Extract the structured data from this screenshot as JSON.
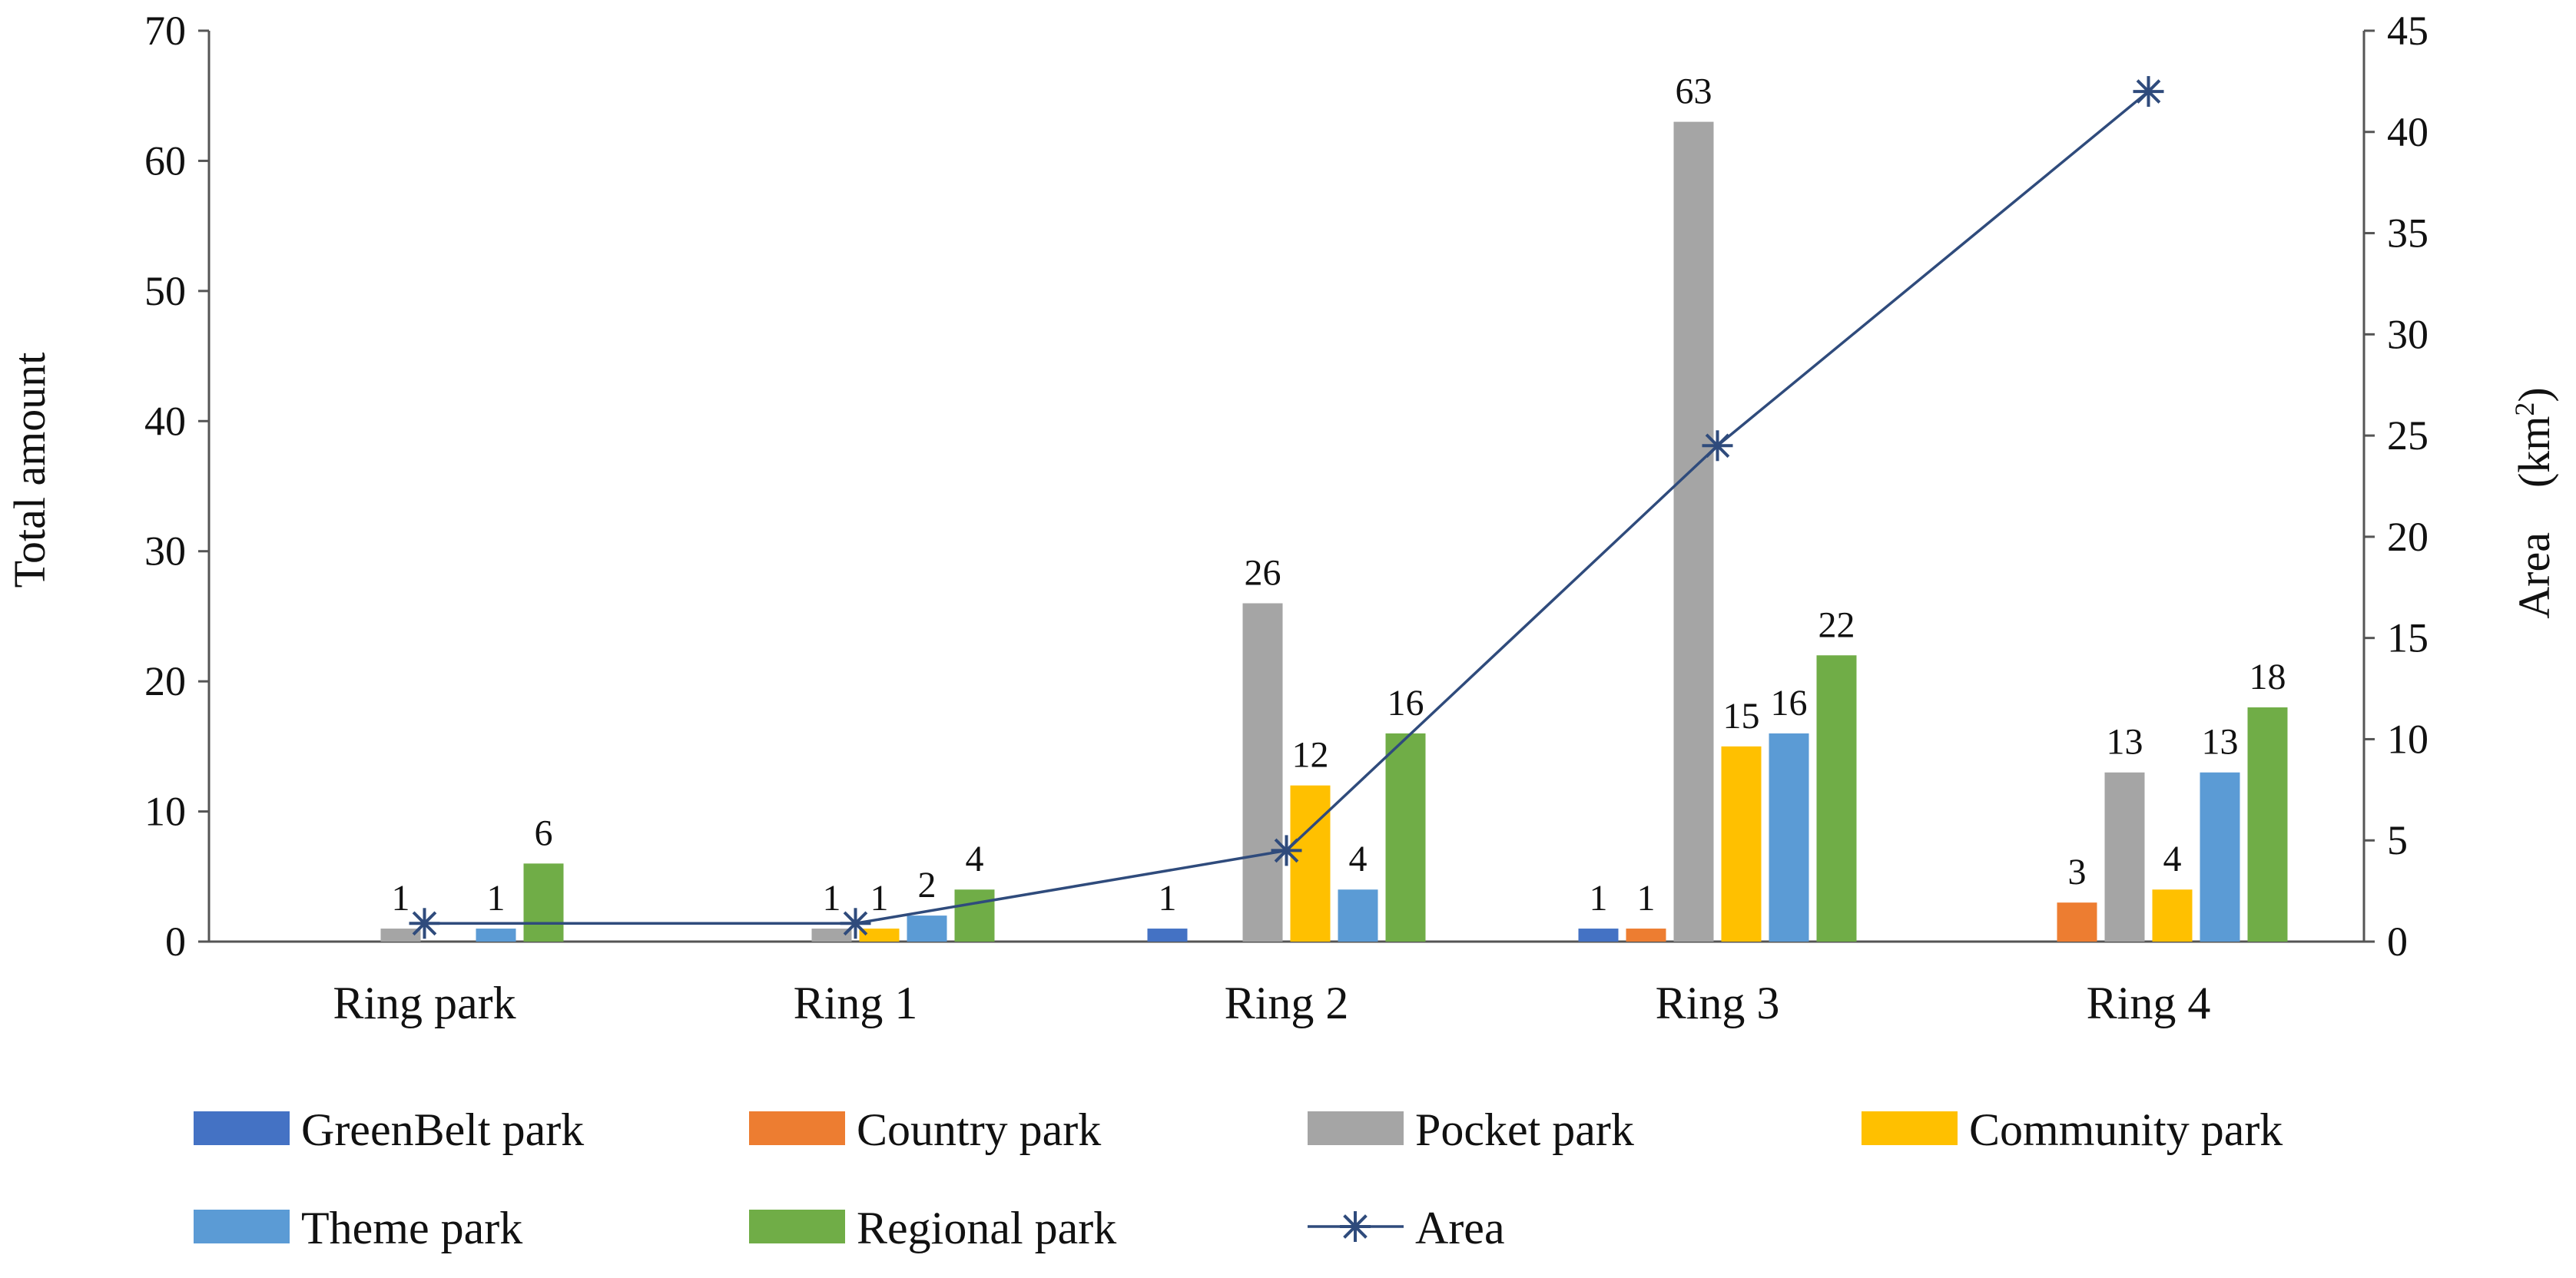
{
  "chart_data": {
    "type": "bar",
    "categories": [
      "Ring park",
      "Ring 1",
      "Ring 2",
      "Ring 3",
      "Ring 4"
    ],
    "series": [
      {
        "name": "GreenBelt park",
        "type": "bar",
        "axis": "left",
        "color": "#4472C4",
        "values": [
          0,
          0,
          1,
          1,
          0
        ],
        "labels": [
          "",
          "",
          "1",
          "1",
          ""
        ]
      },
      {
        "name": "Country park",
        "type": "bar",
        "axis": "left",
        "color": "#ED7D31",
        "values": [
          0,
          0,
          0,
          1,
          3
        ],
        "labels": [
          "",
          "",
          "",
          "1",
          "3"
        ]
      },
      {
        "name": "Pocket park",
        "type": "bar",
        "axis": "left",
        "color": "#A5A5A5",
        "values": [
          1,
          1,
          26,
          63,
          13
        ],
        "labels": [
          "1",
          "1",
          "26",
          "63",
          "13"
        ]
      },
      {
        "name": "Community park",
        "type": "bar",
        "axis": "left",
        "color": "#FFC000",
        "values": [
          0,
          1,
          12,
          15,
          4
        ],
        "labels": [
          "",
          "1",
          "12",
          "15",
          "4"
        ]
      },
      {
        "name": "Theme park",
        "type": "bar",
        "axis": "left",
        "color": "#5B9BD5",
        "values": [
          1,
          2,
          4,
          16,
          13
        ],
        "labels": [
          "1",
          "2",
          "4",
          "16",
          "13"
        ]
      },
      {
        "name": "Regional park",
        "type": "bar",
        "axis": "left",
        "color": "#70AD47",
        "values": [
          6,
          4,
          16,
          22,
          18
        ],
        "labels": [
          "6",
          "4",
          "16",
          "22",
          "18"
        ]
      },
      {
        "name": "Area",
        "type": "line",
        "axis": "right",
        "color": "#2F4B7C",
        "marker": "asterisk",
        "values": [
          0.9,
          0.9,
          4.5,
          24.5,
          42
        ]
      }
    ],
    "ylabel": "Total amount",
    "ylim": [
      0,
      70
    ],
    "yticks": [
      "0",
      "10",
      "20",
      "30",
      "40",
      "50",
      "60",
      "70"
    ],
    "y2label_main": "Area　(km",
    "y2label_sup": "2",
    "y2label_end": ")",
    "y2lim": [
      0,
      45
    ],
    "y2ticks": [
      "0",
      "5",
      "10",
      "15",
      "20",
      "25",
      "30",
      "35",
      "40",
      "45"
    ],
    "grid": false,
    "legend_position": "bottom"
  }
}
